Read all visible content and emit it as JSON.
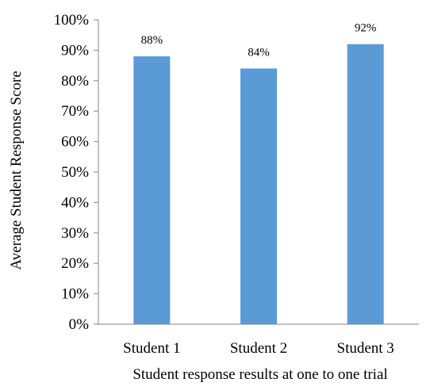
{
  "chart_data": {
    "type": "bar",
    "categories": [
      "Student 1",
      "Student 2",
      "Student 3"
    ],
    "values": [
      88,
      84,
      92
    ],
    "data_labels": [
      "88%",
      "84%",
      "92%"
    ],
    "title": "",
    "xlabel": "Student response results at one to one trial",
    "ylabel": "Average Student Response Score",
    "ylim": [
      0,
      100
    ],
    "yticks": [
      {
        "value": 0,
        "label": "0%"
      },
      {
        "value": 10,
        "label": "10%"
      },
      {
        "value": 20,
        "label": "20%"
      },
      {
        "value": 30,
        "label": "30%"
      },
      {
        "value": 40,
        "label": "40%"
      },
      {
        "value": 50,
        "label": "50%"
      },
      {
        "value": 60,
        "label": "60%"
      },
      {
        "value": 70,
        "label": "70%"
      },
      {
        "value": 80,
        "label": "80%"
      },
      {
        "value": 90,
        "label": "90%"
      },
      {
        "value": 100,
        "label": "100%"
      }
    ],
    "grid": false,
    "legend": "none",
    "bar_color": "#5B9BD5",
    "axis_color": "#868686"
  }
}
